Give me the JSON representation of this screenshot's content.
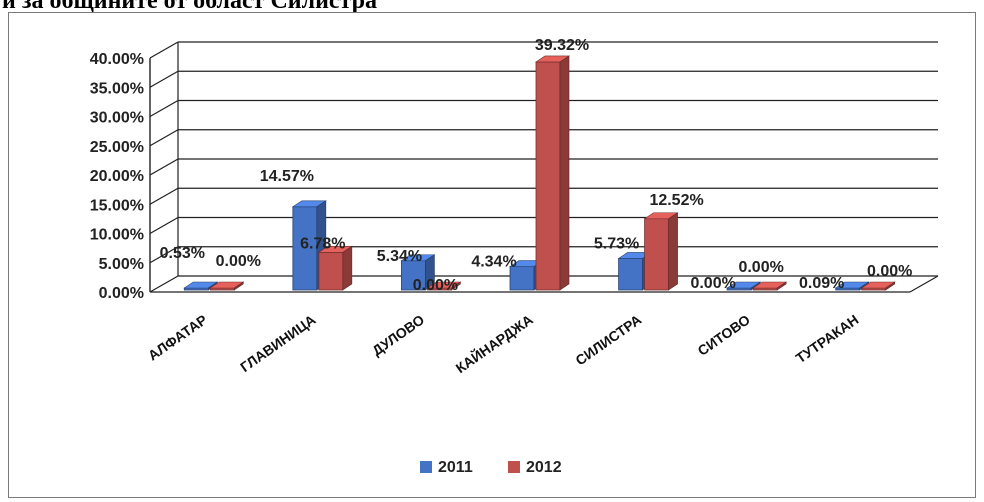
{
  "page": {
    "header_text": "и за общините от област Силистра"
  },
  "chart_data": {
    "type": "bar",
    "categories": [
      "АЛФАТАР",
      "ГЛАВИНИЦА",
      "ДУЛОВО",
      "КАЙНАРДЖА",
      "СИЛИСТРА",
      "СИТОВО",
      "ТУТРАКАН"
    ],
    "series": [
      {
        "name": "2011",
        "color": "#4472C4",
        "values": [
          0.53,
          14.57,
          5.34,
          4.34,
          5.73,
          0.0,
          0.09
        ],
        "labels": [
          "0.53%",
          "14.57%",
          "5.34%",
          "4.34%",
          "5.73%",
          "0.00%",
          "0.09%"
        ]
      },
      {
        "name": "2012",
        "color": "#C0504D",
        "values": [
          0.0,
          6.78,
          0.0,
          39.32,
          12.52,
          0.0,
          0.0
        ],
        "labels": [
          "0.00%",
          "6.78%",
          "0.00%",
          "39.32%",
          "12.52%",
          "0.00%",
          "0.00%"
        ]
      }
    ],
    "y_ticks": [
      "0.00%",
      "5.00%",
      "10.00%",
      "15.00%",
      "20.00%",
      "25.00%",
      "30.00%",
      "35.00%",
      "40.00%"
    ],
    "ylim": [
      0,
      40
    ],
    "grid": true,
    "legend_placement": "bottom",
    "style": "3d-clustered-column"
  }
}
